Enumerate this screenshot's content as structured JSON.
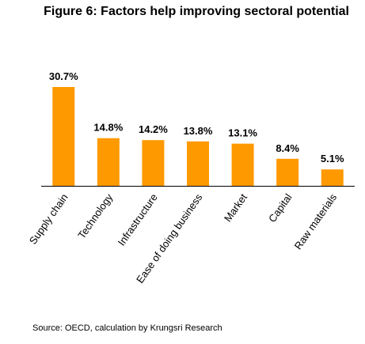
{
  "title": "Figure 6: Factors help improving sectoral potential",
  "source": "Source: OECD, calculation by Krungsri Research",
  "colors": {
    "bar": "#FF9900",
    "axis": "#000000"
  },
  "chart_data": {
    "type": "bar",
    "title": "Figure 6: Factors help improving sectoral potential",
    "categories": [
      "Supply chain",
      "Technology",
      "Infrastructure",
      "Ease of doing business",
      "Market",
      "Capital",
      "Raw materials"
    ],
    "values": [
      30.7,
      14.8,
      14.2,
      13.8,
      13.1,
      8.4,
      5.1
    ],
    "data_labels": [
      "30.7%",
      "14.8%",
      "14.2%",
      "13.8%",
      "13.1%",
      "8.4%",
      "5.1%"
    ],
    "xlabel": "",
    "ylabel": "",
    "ylim": [
      0,
      35
    ],
    "grid": false,
    "legend": "none"
  }
}
